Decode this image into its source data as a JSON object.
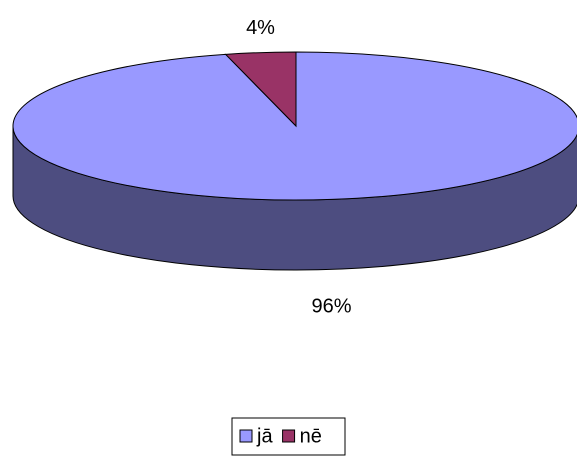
{
  "chart_data": {
    "type": "pie",
    "categories": [
      "jā",
      "nē"
    ],
    "values": [
      96,
      4
    ],
    "value_labels": [
      "96%",
      "4%"
    ],
    "colors": [
      "#9999ff",
      "#993366"
    ],
    "side_colors": [
      "#4d4d80",
      "#4d1a33"
    ],
    "legend": "bottom"
  }
}
